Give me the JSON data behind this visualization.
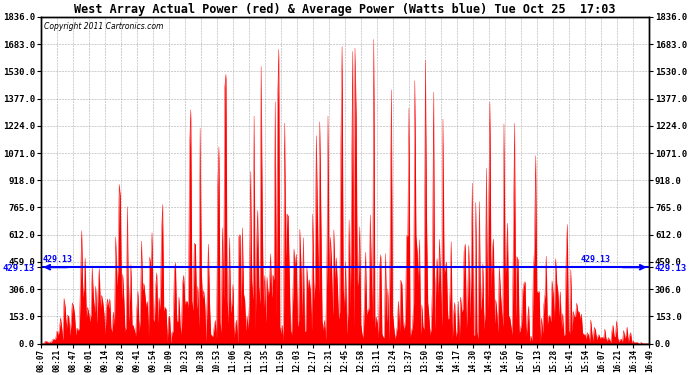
{
  "title": "West Array Actual Power (red) & Average Power (Watts blue) Tue Oct 25  17:03",
  "copyright": "Copyright 2011 Cartronics.com",
  "avg_power": 429.13,
  "ymax": 1836.0,
  "ymin": 0.0,
  "yticks": [
    0.0,
    153.0,
    306.0,
    459.0,
    612.0,
    765.0,
    918.0,
    1071.0,
    1224.0,
    1377.0,
    1530.0,
    1683.0,
    1836.0
  ],
  "bg_color": "#ffffff",
  "plot_bg_color": "#ffffff",
  "red_color": "#ff0000",
  "blue_color": "#0000ff",
  "avg_label": "429.13",
  "xtick_labels": [
    "08:07",
    "08:21",
    "08:47",
    "09:01",
    "09:14",
    "09:28",
    "09:41",
    "09:54",
    "10:09",
    "10:23",
    "10:38",
    "10:53",
    "11:06",
    "11:20",
    "11:35",
    "11:50",
    "12:03",
    "12:17",
    "12:31",
    "12:45",
    "12:58",
    "13:11",
    "13:24",
    "13:37",
    "13:50",
    "14:03",
    "14:17",
    "14:30",
    "14:43",
    "14:56",
    "15:07",
    "15:13",
    "15:28",
    "15:41",
    "15:54",
    "16:07",
    "16:21",
    "16:34",
    "16:49"
  ]
}
